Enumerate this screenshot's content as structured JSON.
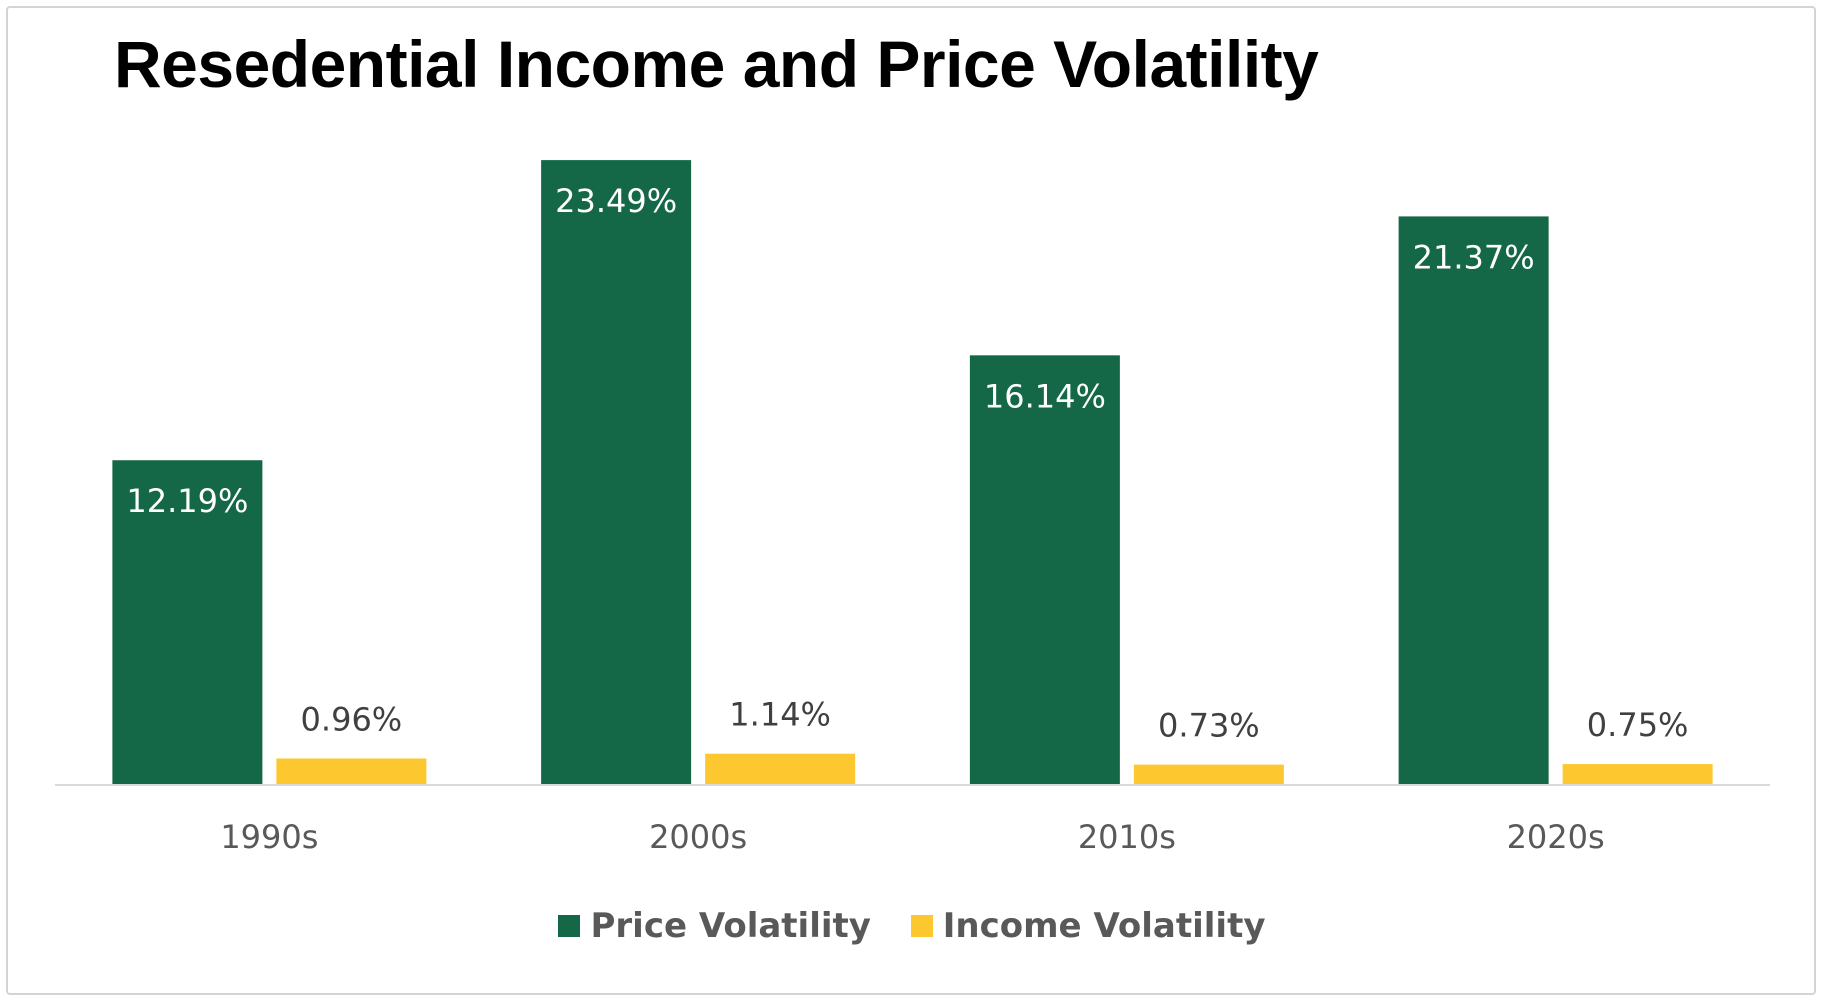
{
  "chart_data": {
    "type": "bar",
    "title": "Resedential Income and Price Volatility",
    "categories": [
      "1990s",
      "2000s",
      "2010s",
      "2020s"
    ],
    "series": [
      {
        "name": "Price Volatility",
        "color": "#146847",
        "values": [
          12.19,
          23.49,
          16.14,
          21.37
        ],
        "labels": [
          "12.19%",
          "23.49%",
          "16.14%",
          "21.37%"
        ]
      },
      {
        "name": "Income Volatility",
        "color": "#fdc82f",
        "values": [
          0.96,
          1.14,
          0.73,
          0.75
        ],
        "labels": [
          "0.96%",
          "1.14%",
          "0.73%",
          "0.75%"
        ]
      }
    ],
    "ylim": [
      0,
      25
    ],
    "grid": false,
    "legend_position": "bottom"
  }
}
